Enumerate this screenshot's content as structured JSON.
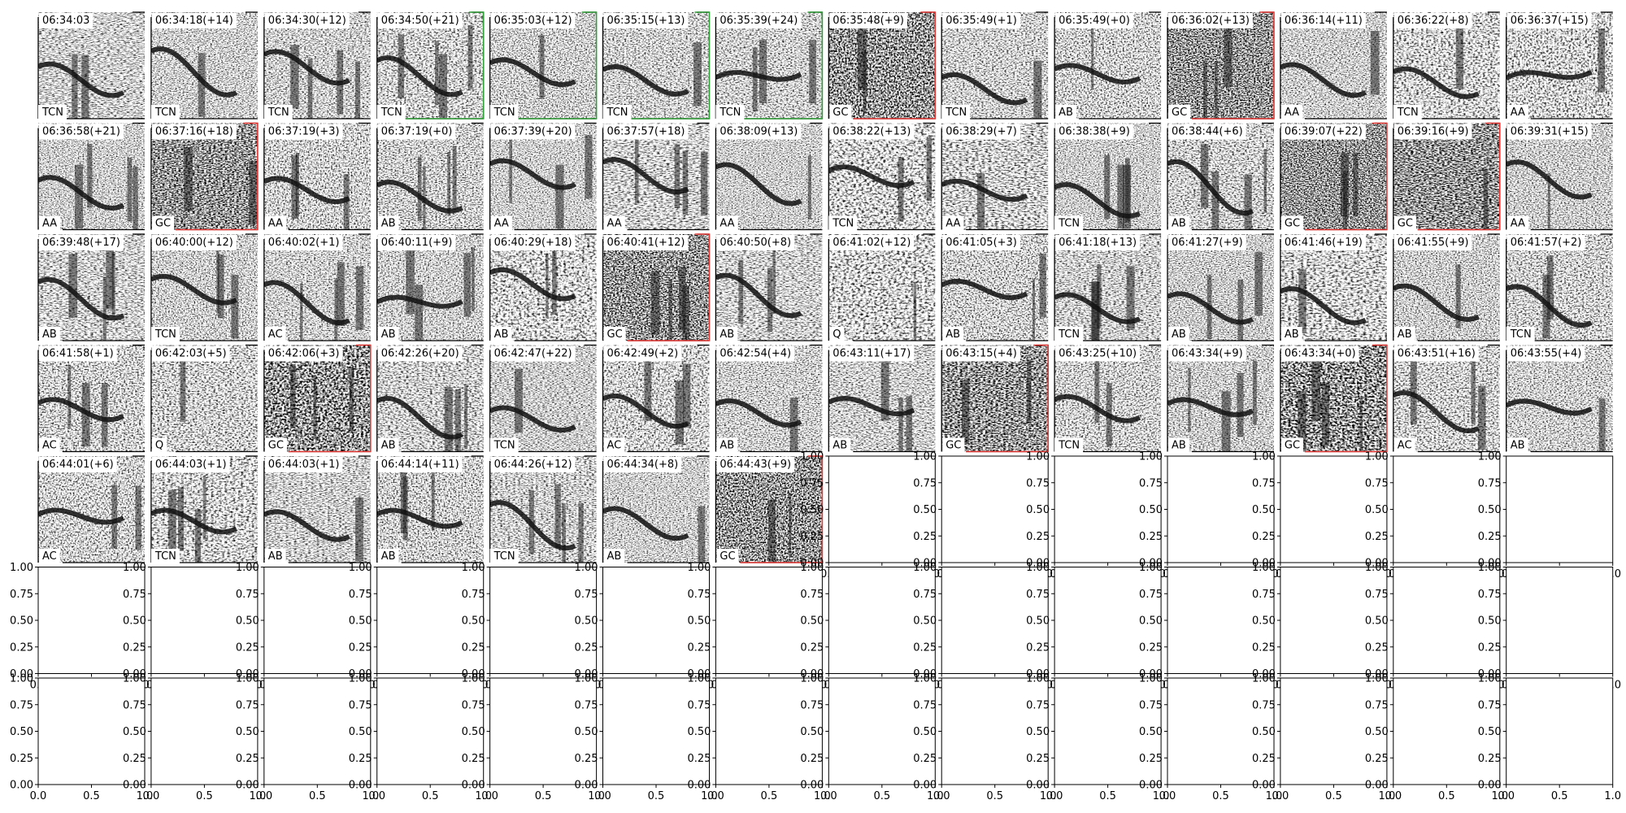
{
  "panels": [
    {
      "time": "06:34:03",
      "label": "TCN"
    },
    {
      "time": "06:34:18(+14)",
      "label": "TCN"
    },
    {
      "time": "06:34:30(+12)",
      "label": "TCN"
    },
    {
      "time": "06:34:50(+21)",
      "label": "TCN",
      "frame": "green"
    },
    {
      "time": "06:35:03(+12)",
      "label": "TCN",
      "frame": "green"
    },
    {
      "time": "06:35:15(+13)",
      "label": "TCN",
      "frame": "green"
    },
    {
      "time": "06:35:39(+24)",
      "label": "TCN",
      "frame": "green"
    },
    {
      "time": "06:35:48(+9)",
      "label": "GC",
      "frame": "red"
    },
    {
      "time": "06:35:49(+1)",
      "label": "TCN"
    },
    {
      "time": "06:35:49(+0)",
      "label": "AB"
    },
    {
      "time": "06:36:02(+13)",
      "label": "GC",
      "frame": "red"
    },
    {
      "time": "06:36:14(+11)",
      "label": "AA"
    },
    {
      "time": "06:36:22(+8)",
      "label": "TCN"
    },
    {
      "time": "06:36:37(+15)",
      "label": "AA"
    },
    {
      "time": "06:36:58(+21)",
      "label": "AA"
    },
    {
      "time": "06:37:16(+18)",
      "label": "GC",
      "frame": "red"
    },
    {
      "time": "06:37:19(+3)",
      "label": "AA"
    },
    {
      "time": "06:37:19(+0)",
      "label": "AB"
    },
    {
      "time": "06:37:39(+20)",
      "label": "AA"
    },
    {
      "time": "06:37:57(+18)",
      "label": "AA"
    },
    {
      "time": "06:38:09(+13)",
      "label": "AA"
    },
    {
      "time": "06:38:22(+13)",
      "label": "TCN"
    },
    {
      "time": "06:38:29(+7)",
      "label": "AA"
    },
    {
      "time": "06:38:38(+9)",
      "label": "TCN"
    },
    {
      "time": "06:38:44(+6)",
      "label": "AB"
    },
    {
      "time": "06:39:07(+22)",
      "label": "GC",
      "frame": "red"
    },
    {
      "time": "06:39:16(+9)",
      "label": "GC",
      "frame": "red"
    },
    {
      "time": "06:39:31(+15)",
      "label": "AA"
    },
    {
      "time": "06:39:48(+17)",
      "label": "AB"
    },
    {
      "time": "06:40:00(+12)",
      "label": "TCN"
    },
    {
      "time": "06:40:02(+1)",
      "label": "AC"
    },
    {
      "time": "06:40:11(+9)",
      "label": "AB"
    },
    {
      "time": "06:40:29(+18)",
      "label": "AB"
    },
    {
      "time": "06:40:41(+12)",
      "label": "GC",
      "frame": "red"
    },
    {
      "time": "06:40:50(+8)",
      "label": "AB"
    },
    {
      "time": "06:41:02(+12)",
      "label": "Q"
    },
    {
      "time": "06:41:05(+3)",
      "label": "AB"
    },
    {
      "time": "06:41:18(+13)",
      "label": "TCN"
    },
    {
      "time": "06:41:27(+9)",
      "label": "AB"
    },
    {
      "time": "06:41:46(+19)",
      "label": "AB"
    },
    {
      "time": "06:41:55(+9)",
      "label": "AB"
    },
    {
      "time": "06:41:57(+2)",
      "label": "TCN"
    },
    {
      "time": "06:41:58(+1)",
      "label": "AC"
    },
    {
      "time": "06:42:03(+5)",
      "label": "Q"
    },
    {
      "time": "06:42:06(+3)",
      "label": "GC",
      "frame": "red"
    },
    {
      "time": "06:42:26(+20)",
      "label": "AB"
    },
    {
      "time": "06:42:47(+22)",
      "label": "TCN"
    },
    {
      "time": "06:42:49(+2)",
      "label": "AC"
    },
    {
      "time": "06:42:54(+4)",
      "label": "AB"
    },
    {
      "time": "06:43:11(+17)",
      "label": "AB"
    },
    {
      "time": "06:43:15(+4)",
      "label": "GC",
      "frame": "red"
    },
    {
      "time": "06:43:25(+10)",
      "label": "TCN"
    },
    {
      "time": "06:43:34(+9)",
      "label": "AB"
    },
    {
      "time": "06:43:34(+0)",
      "label": "GC",
      "frame": "red"
    },
    {
      "time": "06:43:51(+16)",
      "label": "AC"
    },
    {
      "time": "06:43:55(+4)",
      "label": "AB"
    },
    {
      "time": "06:44:01(+6)",
      "label": "AC"
    },
    {
      "time": "06:44:03(+1)",
      "label": "TCN"
    },
    {
      "time": "06:44:03(+1)",
      "label": "AB"
    },
    {
      "time": "06:44:14(+11)",
      "label": "AB"
    },
    {
      "time": "06:44:26(+12)",
      "label": "TCN"
    },
    {
      "time": "06:44:34(+8)",
      "label": "AB"
    },
    {
      "time": "06:44:43(+9)",
      "label": "GC",
      "frame": "red"
    }
  ],
  "empty_axes": {
    "yticks": [
      "0.00",
      "0.25",
      "0.50",
      "0.75",
      "1.00"
    ],
    "xticks": [
      "0.0",
      "0.5",
      "1.0"
    ]
  }
}
